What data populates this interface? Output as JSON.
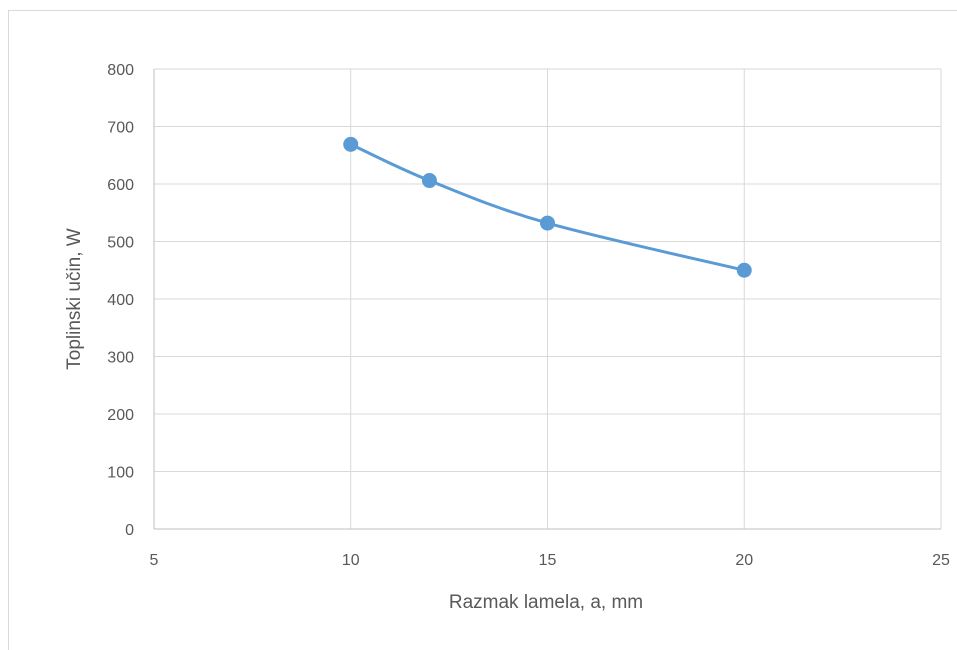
{
  "chart_data": {
    "type": "scatter",
    "title": "",
    "xlabel": "Razmak lamela, a, mm",
    "ylabel": "Toplinski učin, W",
    "xlim": [
      5,
      25
    ],
    "ylim": [
      0,
      800
    ],
    "xticks": [
      "5",
      "10",
      "15",
      "20",
      "25"
    ],
    "yticks": [
      "0",
      "100",
      "200",
      "300",
      "400",
      "500",
      "600",
      "700",
      "800"
    ],
    "grid": true,
    "smoothed_line": true,
    "legend": "none",
    "series": [
      {
        "color": "#5b9bd5",
        "x": [
          10,
          12,
          15,
          20
        ],
        "y": [
          669,
          606,
          532,
          450
        ]
      }
    ]
  }
}
